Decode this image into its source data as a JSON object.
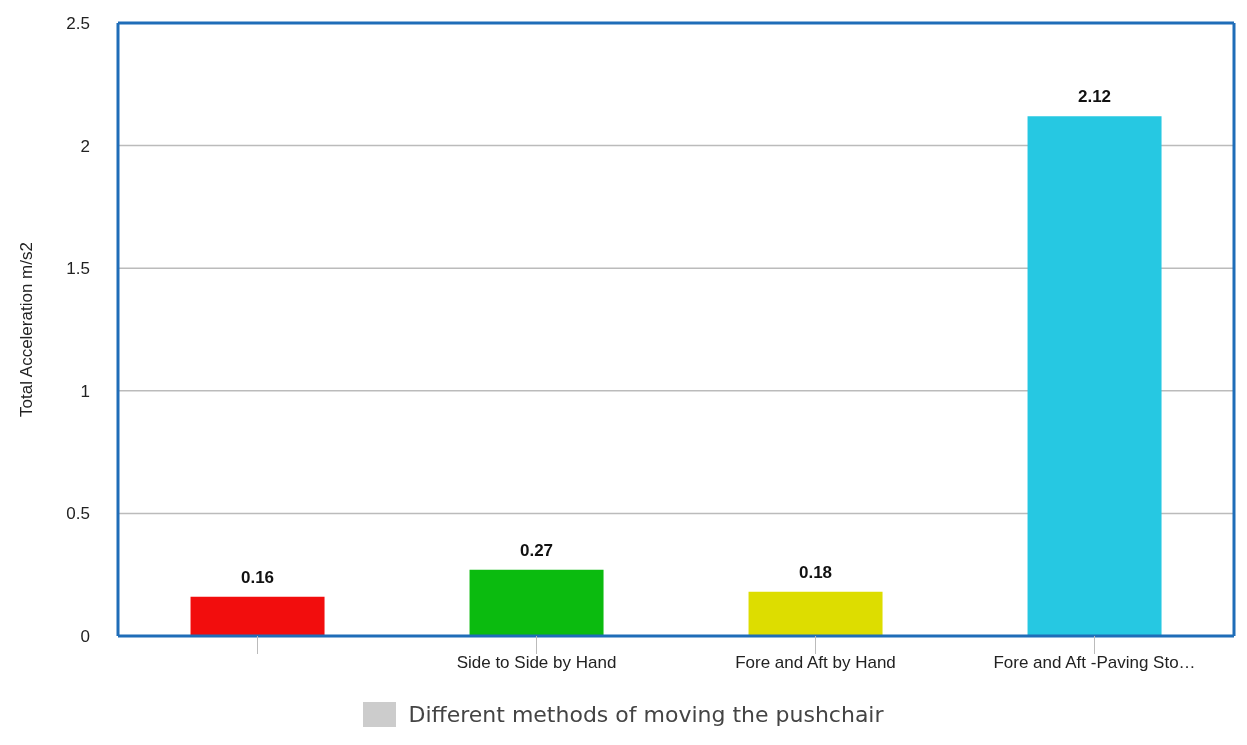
{
  "chart_data": {
    "type": "bar",
    "ylabel": "Total Acceleration m/s2",
    "categories": [
      null,
      "Side to Side by Hand",
      "Fore and Aft by Hand",
      "Fore and Aft -Paving Sto…"
    ],
    "series": [
      {
        "name": "Different methods of moving the pushchair",
        "color": "#cccccc",
        "colors": [
          "#f20d0d",
          "#0bbb0f",
          "#dddd00",
          "#26c8e2"
        ],
        "values": [
          0.16,
          0.27,
          0.18,
          2.12
        ]
      }
    ],
    "ylim": [
      0,
      2.5
    ],
    "yticks": [
      0,
      0.5,
      1,
      1.5,
      2,
      2.5
    ],
    "grid": "y",
    "data_labels": true,
    "legend": "bottom"
  }
}
